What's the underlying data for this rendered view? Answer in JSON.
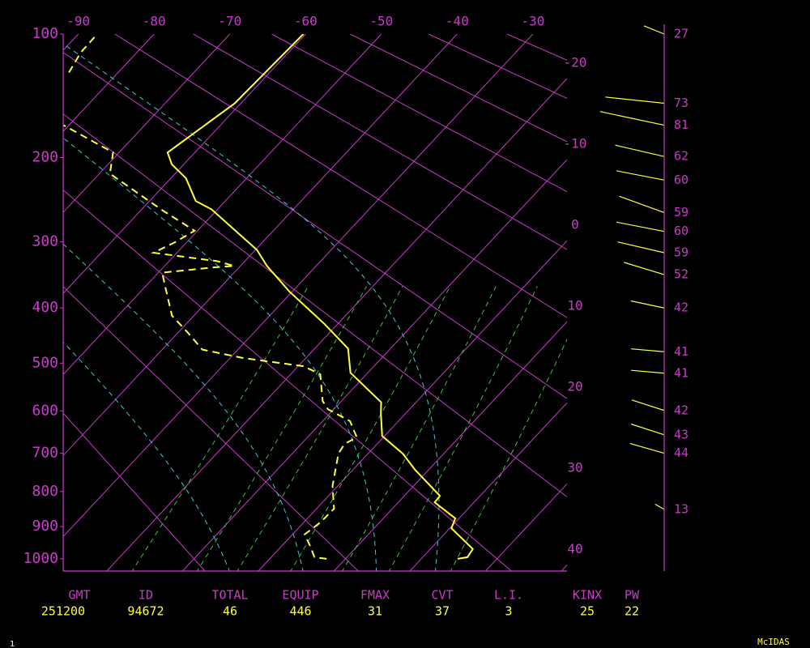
{
  "chart_data": {
    "type": "skewt",
    "yscale": "kappa",
    "ylim": [
      1040,
      100
    ],
    "yticks": [
      100,
      200,
      300,
      400,
      500,
      600,
      700,
      800,
      900,
      1000
    ],
    "xlim": [
      -92,
      -25.5
    ],
    "xticks": [
      -90,
      -80,
      -70,
      -60,
      -50,
      -40,
      -30,
      -20,
      -10,
      0,
      10,
      20,
      30,
      40
    ],
    "series": [
      {
        "color": "#ffff40",
        "style": "solid",
        "pressure": [
          1000,
          995,
          969,
          905,
          876,
          830,
          812,
          742,
          701,
          658,
          605,
          581,
          519,
          472,
          427,
          373,
          334,
          311,
          258,
          248,
          222,
          207,
          195,
          150,
          100
        ],
        "values": [
          24.8,
          25.9,
          25.6,
          20.2,
          19.5,
          14.8,
          14.7,
          8.2,
          4.6,
          -0.3,
          -3.3,
          -4.6,
          -12.3,
          -15.6,
          -21.8,
          -30.4,
          -36.5,
          -39.8,
          -50.8,
          -53.9,
          -58.0,
          -61.6,
          -63.6,
          -60.8,
          -60.3
        ]
      },
      {
        "color": "#ffff40",
        "style": "dashed",
        "pressure": [
          1000,
          995,
          962,
          924,
          888,
          848,
          785,
          701,
          677,
          661,
          623,
          596,
          578,
          522,
          506,
          490,
          474,
          442,
          413,
          360,
          344,
          336,
          334,
          327,
          315,
          301,
          285,
          259,
          217,
          195,
          169,
          null,
          126,
          112,
          100
        ],
        "values": [
          7.5,
          5.7,
          3.9,
          1.6,
          2.2,
          2.3,
          -0.7,
          -3.9,
          -4.3,
          -3.5,
          -6.4,
          -10.8,
          -12.5,
          -16.1,
          -19.3,
          -28.3,
          -34.7,
          -38.8,
          -42.9,
          -47.9,
          -49.5,
          -43.2,
          -40.8,
          -43.7,
          -53.1,
          -51.6,
          -50.4,
          -57.2,
          -68.6,
          -70.8,
          -80.7,
          null,
          -86.5,
          -87.4,
          -87.5
        ]
      }
    ],
    "winds": {
      "color": "#ffff40",
      "pressure": [
        100,
        150,
        169,
        199,
        224,
        262,
        286,
        315,
        347,
        400,
        478,
        520,
        599,
        655,
        700,
        850
      ],
      "direction": [
        292,
        276,
        282,
        283,
        281,
        290,
        281,
        283,
        287,
        282,
        275,
        275,
        288,
        288,
        286,
        300
      ],
      "values": [
        27,
        73,
        81,
        62,
        60,
        59,
        60,
        59,
        52,
        42,
        41,
        41,
        42,
        43,
        44,
        13
      ]
    },
    "stats": {
      "labels": [
        "GMT",
        "ID",
        "TOTAL",
        "EQUIP",
        "FMAX",
        "CVT",
        "L.I.",
        "KINX",
        "PW"
      ],
      "values": [
        251200,
        94672,
        46,
        446,
        31,
        37,
        3,
        25,
        22
      ]
    }
  },
  "footer": {
    "page": 1,
    "brand": "McIDAS"
  }
}
